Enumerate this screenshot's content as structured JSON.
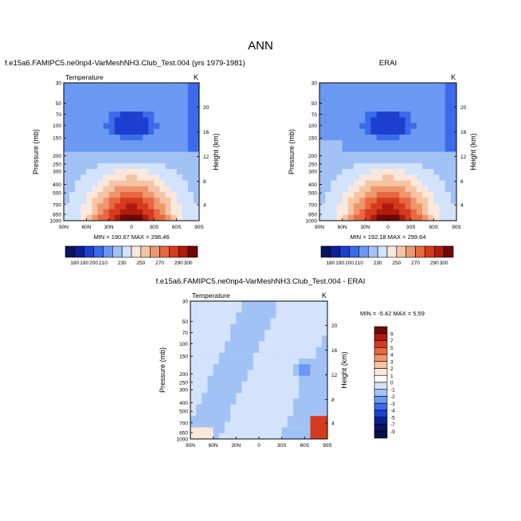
{
  "page": {
    "title": "ANN"
  },
  "chart_data": [
    {
      "type": "heatmap",
      "case_title": "f.e15a6.FAMIPC5.ne0np4-VarMeshNH3.Club_Test.004 (yrs 1979-1981)",
      "variable": "Temperature",
      "units": "K",
      "ylabel": "Pressure (mb)",
      "ylabel_right": "Height (km)",
      "x_ticks": [
        "90N",
        "60N",
        "30N",
        "0",
        "30S",
        "60S",
        "90S"
      ],
      "y_ticks": [
        "30",
        "50",
        "70",
        "100",
        "150",
        "200",
        "250",
        "300",
        "400",
        "500",
        "700",
        "850",
        "1000"
      ],
      "height_ticks": [
        "20",
        "16",
        "12",
        "8",
        "4"
      ],
      "min": 190.67,
      "max": 298.46,
      "minmax_text": "MIN = 190.67  MAX = 298.46",
      "colorbar_labels": [
        "180",
        "190",
        "200",
        "210",
        "230",
        "250",
        "270",
        "290",
        "300"
      ]
    },
    {
      "type": "heatmap",
      "case_title": "ERAI",
      "variable": "",
      "units": "K",
      "ylabel": "Pressure (mb)",
      "ylabel_right": "Height (km)",
      "x_ticks": [
        "90N",
        "60N",
        "30N",
        "0",
        "30S",
        "60S",
        "90S"
      ],
      "y_ticks": [
        "30",
        "50",
        "70",
        "100",
        "150",
        "200",
        "250",
        "300",
        "400",
        "500",
        "700",
        "850",
        "1000"
      ],
      "height_ticks": [
        "20",
        "16",
        "12",
        "8",
        "4"
      ],
      "min": 192.18,
      "max": 299.64,
      "minmax_text": "MIN = 192.18  MAX = 299.64",
      "colorbar_labels": [
        "180",
        "190",
        "200",
        "210",
        "230",
        "250",
        "270",
        "290",
        "300"
      ]
    },
    {
      "type": "heatmap",
      "case_title": "f.e15a6.FAMIPC5.ne0np4-VarMeshNH3.Club_Test.004 - ERAI",
      "variable": "Temperature",
      "units": "K",
      "ylabel": "Pressure (mb)",
      "ylabel_right": "Height (km)",
      "x_ticks": [
        "90N",
        "60N",
        "30N",
        "0",
        "30S",
        "60S",
        "90S"
      ],
      "y_ticks": [
        "30",
        "50",
        "70",
        "100",
        "150",
        "200",
        "250",
        "300",
        "400",
        "500",
        "700",
        "850",
        "1000"
      ],
      "height_ticks": [
        "20",
        "16",
        "12",
        "8",
        "4"
      ],
      "min": -5.42,
      "max": 5.59,
      "minmax_text": "MIN = -5.42  MAX =  5.59",
      "colorbar_labels": [
        "9",
        "7",
        "5",
        "4",
        "3",
        "2",
        "1",
        "0",
        "-1",
        "-2",
        "-3",
        "-4",
        "-5",
        "-7",
        "-9"
      ]
    }
  ],
  "colors": {
    "abs_scale": [
      "#08145c",
      "#0c1f9a",
      "#1d3fcf",
      "#3b6bea",
      "#6a98f2",
      "#a2c2f6",
      "#d2e3fb",
      "#fbe8dc",
      "#f6c4a4",
      "#f0966c",
      "#e86840",
      "#d63a1e",
      "#b01b0c",
      "#6e0a05"
    ],
    "diff_scale": [
      "#6e0a05",
      "#b01b0c",
      "#d63a1e",
      "#e86840",
      "#f0966c",
      "#f6c4a4",
      "#fbe8dc",
      "#ffffff",
      "#d2e3fb",
      "#a2c2f6",
      "#6a98f2",
      "#3b6bea",
      "#1d3fcf",
      "#0c1f9a",
      "#08145c",
      "#061048"
    ]
  }
}
